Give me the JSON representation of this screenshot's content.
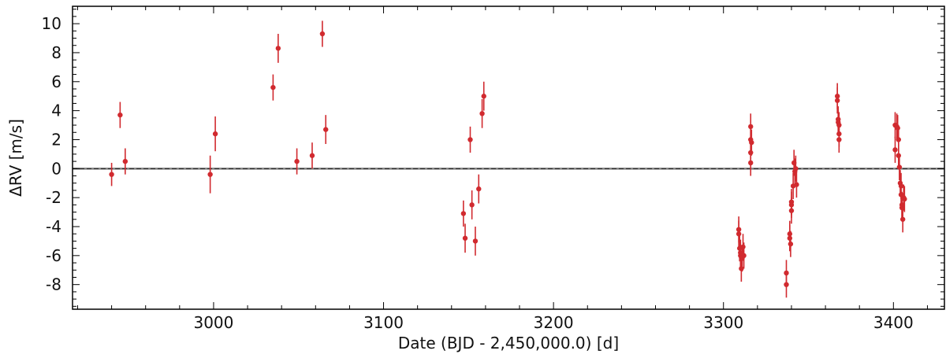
{
  "chart_data": {
    "type": "scatter",
    "xlabel": "Date (BJD - 2,450,000.0) [d]",
    "ylabel": "ΔRV [m/s]",
    "xlim": [
      2917,
      3430
    ],
    "ylim": [
      -9.7,
      11.2
    ],
    "x_ticks": [
      3000,
      3100,
      3200,
      3300,
      3400
    ],
    "y_ticks": [
      -8,
      -6,
      -4,
      -2,
      0,
      2,
      4,
      6,
      8,
      10
    ],
    "grid": false,
    "reference_line": {
      "y": 0,
      "style": "dashed",
      "color": "#808080"
    },
    "marker_color": "#d12a2f",
    "points": [
      {
        "x": 2940,
        "y": -0.4,
        "err": 0.8
      },
      {
        "x": 2945,
        "y": 3.7,
        "err": 0.9
      },
      {
        "x": 2948,
        "y": 0.5,
        "err": 0.9
      },
      {
        "x": 2998,
        "y": -0.4,
        "err": 1.3
      },
      {
        "x": 3001,
        "y": 2.4,
        "err": 1.2
      },
      {
        "x": 3035,
        "y": 5.6,
        "err": 0.9
      },
      {
        "x": 3038,
        "y": 8.3,
        "err": 1.0
      },
      {
        "x": 3049,
        "y": 0.5,
        "err": 0.9
      },
      {
        "x": 3058,
        "y": 0.9,
        "err": 0.9
      },
      {
        "x": 3064,
        "y": 9.3,
        "err": 0.9
      },
      {
        "x": 3066,
        "y": 2.7,
        "err": 1.0
      },
      {
        "x": 3147,
        "y": -3.1,
        "err": 0.9
      },
      {
        "x": 3148,
        "y": -4.8,
        "err": 1.0
      },
      {
        "x": 3151,
        "y": 2.0,
        "err": 0.9
      },
      {
        "x": 3152,
        "y": -2.5,
        "err": 1.0
      },
      {
        "x": 3154,
        "y": -5.0,
        "err": 1.0
      },
      {
        "x": 3156,
        "y": -1.4,
        "err": 1.0
      },
      {
        "x": 3158,
        "y": 3.8,
        "err": 1.0
      },
      {
        "x": 3159,
        "y": 5.0,
        "err": 1.0
      },
      {
        "x": 3309,
        "y": -4.2,
        "err": 0.9
      },
      {
        "x": 3309,
        "y": -4.5,
        "err": 0.9
      },
      {
        "x": 3309.5,
        "y": -5.5,
        "err": 0.9
      },
      {
        "x": 3310,
        "y": -6.0,
        "err": 0.9
      },
      {
        "x": 3310,
        "y": -5.8,
        "err": 0.9
      },
      {
        "x": 3310.5,
        "y": -6.9,
        "err": 0.9
      },
      {
        "x": 3311,
        "y": -6.2,
        "err": 0.9
      },
      {
        "x": 3311.5,
        "y": -5.4,
        "err": 0.9
      },
      {
        "x": 3312,
        "y": -6.0,
        "err": 0.9
      },
      {
        "x": 3316,
        "y": 2.9,
        "err": 0.9
      },
      {
        "x": 3316,
        "y": 2.0,
        "err": 0.9
      },
      {
        "x": 3316.5,
        "y": 1.8,
        "err": 0.9
      },
      {
        "x": 3316,
        "y": 1.1,
        "err": 0.9
      },
      {
        "x": 3316,
        "y": 0.4,
        "err": 0.9
      },
      {
        "x": 3337,
        "y": -7.2,
        "err": 0.9
      },
      {
        "x": 3337,
        "y": -8.0,
        "err": 0.9
      },
      {
        "x": 3339,
        "y": -4.5,
        "err": 0.9
      },
      {
        "x": 3339,
        "y": -4.8,
        "err": 0.9
      },
      {
        "x": 3339.5,
        "y": -5.2,
        "err": 0.9
      },
      {
        "x": 3340,
        "y": -2.3,
        "err": 0.9
      },
      {
        "x": 3340,
        "y": -2.5,
        "err": 0.9
      },
      {
        "x": 3340,
        "y": -2.9,
        "err": 0.9
      },
      {
        "x": 3341,
        "y": -1.2,
        "err": 0.9
      },
      {
        "x": 3341.5,
        "y": 0.4,
        "err": 0.9
      },
      {
        "x": 3342,
        "y": -0.2,
        "err": 0.9
      },
      {
        "x": 3342.5,
        "y": 0.0,
        "err": 0.9
      },
      {
        "x": 3343,
        "y": -1.1,
        "err": 0.9
      },
      {
        "x": 3367,
        "y": 5.0,
        "err": 0.9
      },
      {
        "x": 3367,
        "y": 4.7,
        "err": 0.9
      },
      {
        "x": 3367.5,
        "y": 3.4,
        "err": 0.9
      },
      {
        "x": 3367.5,
        "y": 3.2,
        "err": 0.9
      },
      {
        "x": 3368,
        "y": 3.0,
        "err": 0.9
      },
      {
        "x": 3368,
        "y": 2.4,
        "err": 0.9
      },
      {
        "x": 3368,
        "y": 2.0,
        "err": 0.9
      },
      {
        "x": 3401,
        "y": 3.0,
        "err": 0.9
      },
      {
        "x": 3401,
        "y": 1.3,
        "err": 0.9
      },
      {
        "x": 3402,
        "y": 2.9,
        "err": 0.9
      },
      {
        "x": 3402.5,
        "y": 2.8,
        "err": 0.9
      },
      {
        "x": 3403,
        "y": 2.0,
        "err": 0.9
      },
      {
        "x": 3403,
        "y": 0.9,
        "err": 0.9
      },
      {
        "x": 3403.5,
        "y": 0.1,
        "err": 0.9
      },
      {
        "x": 3404,
        "y": -1.0,
        "err": 0.9
      },
      {
        "x": 3404.5,
        "y": -1.2,
        "err": 0.9
      },
      {
        "x": 3404.5,
        "y": -1.8,
        "err": 0.9
      },
      {
        "x": 3405,
        "y": -2.5,
        "err": 0.9
      },
      {
        "x": 3405,
        "y": -2.7,
        "err": 0.9
      },
      {
        "x": 3405.5,
        "y": -3.5,
        "err": 0.9
      },
      {
        "x": 3406,
        "y": -2.0,
        "err": 0.9
      },
      {
        "x": 3406.5,
        "y": -2.1,
        "err": 0.9
      }
    ]
  }
}
